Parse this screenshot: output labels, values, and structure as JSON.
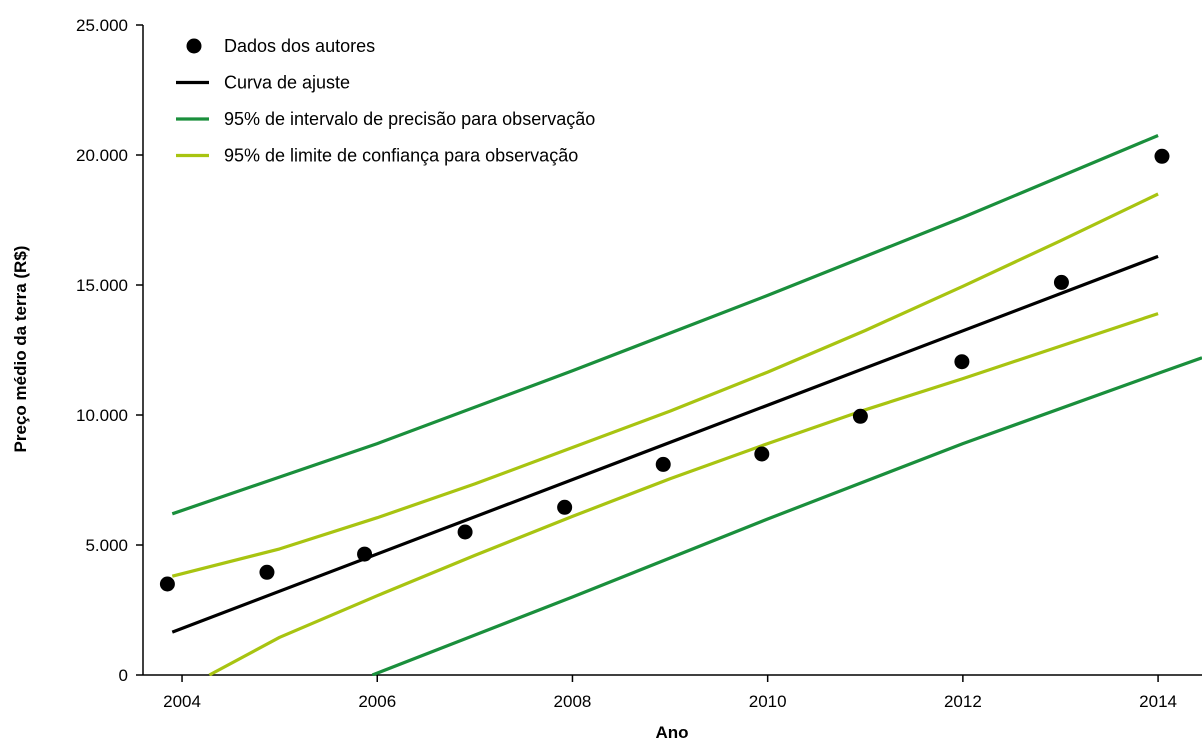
{
  "chart_data": {
    "type": "scatter",
    "title": "",
    "xlabel": "Ano",
    "ylabel": "Preço médio da terra (R$)",
    "xlim": [
      2003.6,
      2014.45
    ],
    "ylim": [
      0,
      25000
    ],
    "x_ticks": [
      2004,
      2006,
      2008,
      2010,
      2012,
      2014
    ],
    "x_tick_labels": [
      "2004",
      "2006",
      "2008",
      "2010",
      "2012",
      "2014"
    ],
    "y_ticks": [
      0,
      5000,
      10000,
      15000,
      20000,
      25000
    ],
    "y_tick_labels": [
      "0",
      "5.000",
      "10.000",
      "15.000",
      "20.000",
      "25.000"
    ],
    "grid": false,
    "legend_position": "top-left",
    "series": [
      {
        "name": "Dados dos autores",
        "kind": "points",
        "color": "#000000",
        "x": [
          2003.85,
          2004.87,
          2005.87,
          2006.9,
          2007.92,
          2008.93,
          2009.94,
          2010.95,
          2011.99,
          2013.01,
          2014.04
        ],
        "y": [
          3500,
          3950,
          4650,
          5500,
          6450,
          8100,
          8500,
          9950,
          12050,
          15100,
          19950
        ]
      },
      {
        "name": "Curva de ajuste",
        "kind": "line",
        "color": "#000000",
        "x": [
          2003.9,
          2014.0
        ],
        "y": [
          1650,
          16100
        ]
      },
      {
        "name": "95% de intervalo de precisão para observação",
        "kind": "line",
        "color": "#1a8f3c",
        "x": [
          2003.9,
          2006.0,
          2008.0,
          2010.0,
          2012.0,
          2014.0
        ],
        "y": [
          6200,
          8900,
          11700,
          14600,
          17600,
          20750
        ]
      },
      {
        "name": "",
        "kind": "line",
        "color": "#1a8f3c",
        "x": [
          2005.95,
          2008.0,
          2010.0,
          2012.0,
          2014.0,
          2014.45
        ],
        "y": [
          0,
          3000,
          6000,
          8900,
          11600,
          12200
        ]
      },
      {
        "name": "95% de limite de confiança para observação",
        "kind": "line",
        "color": "#a8c411",
        "x": [
          2003.9,
          2005.0,
          2006.0,
          2007.0,
          2008.0,
          2009.0,
          2010.0,
          2011.0,
          2012.0,
          2013.0,
          2014.0
        ],
        "y": [
          3800,
          4850,
          6050,
          7350,
          8750,
          10150,
          11650,
          13250,
          14950,
          16700,
          18500
        ]
      },
      {
        "name": "",
        "kind": "line",
        "color": "#a8c411",
        "x": [
          2004.28,
          2005.0,
          2006.0,
          2007.0,
          2008.0,
          2009.0,
          2010.0,
          2011.0,
          2012.0,
          2013.0,
          2014.0
        ],
        "y": [
          0,
          1450,
          3050,
          4600,
          6100,
          7550,
          8900,
          10200,
          11400,
          12650,
          13900
        ]
      }
    ]
  }
}
